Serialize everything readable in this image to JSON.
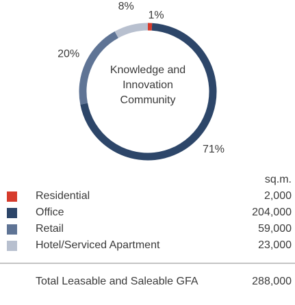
{
  "chart_data": {
    "type": "donut",
    "categories": [
      "Residential",
      "Office",
      "Retail",
      "Hotel/Serviced Apartment"
    ],
    "values": [
      1,
      71,
      20,
      8
    ],
    "value_labels": [
      "1%",
      "71%",
      "20%",
      "8%"
    ],
    "colors": [
      "#d63b2c",
      "#2d4669",
      "#5f7495",
      "#b8c0cf"
    ],
    "center_label": "Knowledge and Innovation Community"
  },
  "table": {
    "unit": "sq.m.",
    "areas": [
      "2,000",
      "204,000",
      "59,000",
      "23,000"
    ],
    "total_label": "Total Leasable and Saleable GFA",
    "total": "288,000"
  }
}
